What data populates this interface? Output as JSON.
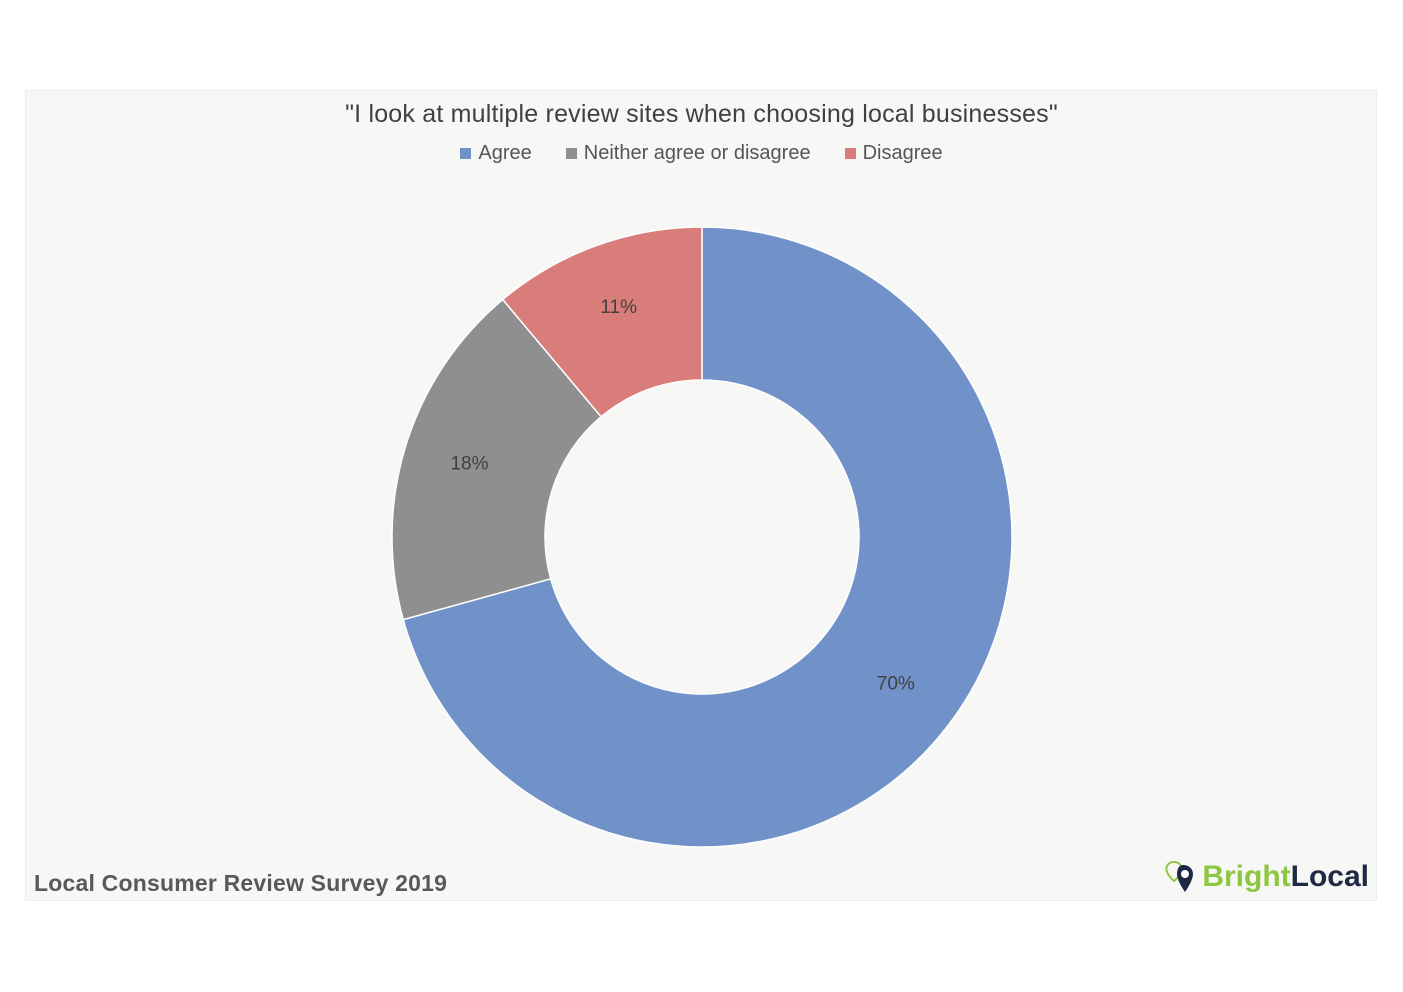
{
  "chart_data": {
    "type": "pie",
    "donut": true,
    "title": "\"I look at multiple review sites when choosing local businesses\"",
    "categories": [
      "Agree",
      "Neither agree or disagree",
      "Disagree"
    ],
    "values": [
      70,
      18,
      11
    ],
    "value_labels": [
      "70%",
      "18%",
      "11%"
    ],
    "colors": [
      "#7092c9",
      "#8f8f8f",
      "#d97d7a"
    ],
    "legend_position": "top",
    "start_angle": "12 o'clock",
    "direction": "clockwise"
  },
  "footer": {
    "source": "Local Consumer Review Survey 2019"
  },
  "brand": {
    "name_part_1": "Bright",
    "name_part_2": "Local",
    "logo_icon": "map-pin-heart-icon"
  }
}
